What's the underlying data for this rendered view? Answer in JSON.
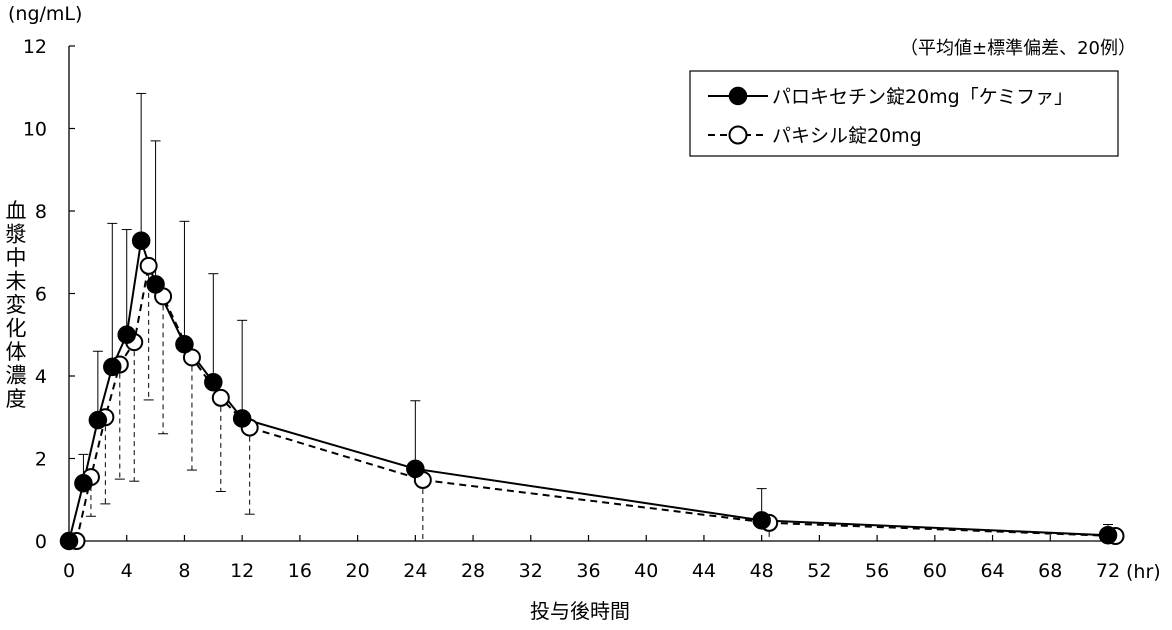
{
  "chart_data": {
    "type": "line",
    "y_unit": "(ng/mL)",
    "x_unit": "(hr)",
    "xlabel": "投与後時間",
    "ylabel": "血漿中未変化体濃度",
    "note": "（平均値±標準偏差、20例）",
    "xlim": [
      0,
      72
    ],
    "ylim": [
      0,
      12
    ],
    "x_ticks": [
      0,
      4,
      8,
      12,
      16,
      20,
      24,
      28,
      32,
      36,
      40,
      44,
      48,
      52,
      56,
      60,
      64,
      68,
      72
    ],
    "y_ticks": [
      0,
      2,
      4,
      6,
      8,
      10,
      12
    ],
    "grid": false,
    "legend_position": "top-right",
    "series": [
      {
        "name": "パロキセチン錠20mg「ケミファ」",
        "marker": "filled-circle",
        "line": "solid",
        "color": "#000000",
        "x": [
          0,
          1,
          2,
          3,
          4,
          5,
          6,
          8,
          10,
          12,
          24,
          48,
          72
        ],
        "y": [
          0,
          1.4,
          2.93,
          4.22,
          5.0,
          7.28,
          6.22,
          4.77,
          3.85,
          2.97,
          1.75,
          0.5,
          0.14
        ],
        "sd_upper": [
          0,
          2.1,
          4.6,
          7.7,
          7.55,
          10.85,
          9.7,
          7.75,
          6.48,
          5.35,
          3.4,
          1.27,
          0.4
        ]
      },
      {
        "name": "パキシル錠20mg",
        "marker": "open-circle",
        "line": "dashed",
        "color": "#000000",
        "x": [
          0,
          1,
          2,
          3,
          4,
          5,
          6,
          8,
          10,
          12,
          24,
          48,
          72
        ],
        "y": [
          0,
          1.55,
          3.0,
          4.28,
          4.82,
          6.67,
          5.93,
          4.45,
          3.47,
          2.75,
          1.48,
          0.44,
          0.12
        ],
        "sd_lower": [
          0,
          0.6,
          0.9,
          1.5,
          1.45,
          3.42,
          2.6,
          1.72,
          1.2,
          0.65,
          0.0,
          0.0,
          0.0
        ]
      }
    ]
  }
}
